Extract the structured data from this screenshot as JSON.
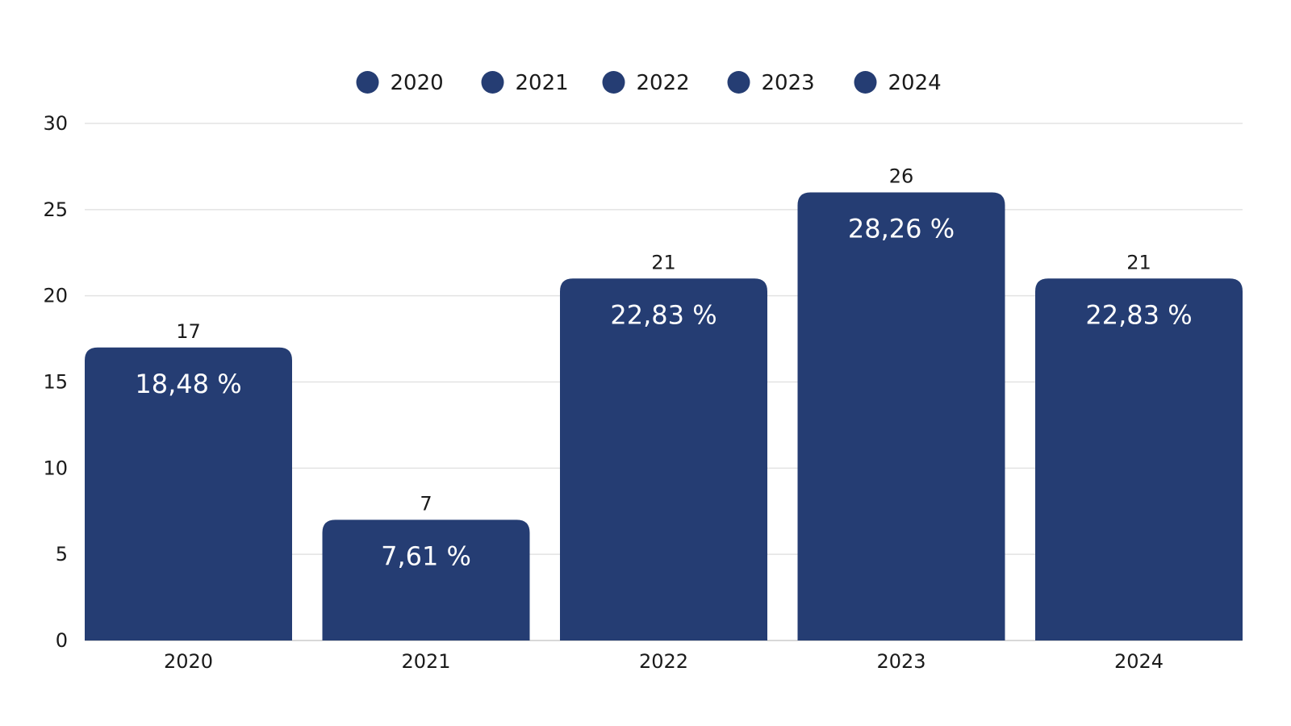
{
  "chart_data": {
    "type": "bar",
    "categories": [
      "2020",
      "2021",
      "2022",
      "2023",
      "2024"
    ],
    "values": [
      17,
      7,
      21,
      26,
      21
    ],
    "percent_labels": [
      "18,48 %",
      "7,61 %",
      "22,83 %",
      "28,26 %",
      "22,83 %"
    ],
    "legend": [
      "2020",
      "2021",
      "2022",
      "2023",
      "2024"
    ],
    "legend_position": "top-center",
    "ylim": [
      0,
      30
    ],
    "yticks": [
      "0",
      "5",
      "10",
      "15",
      "20",
      "25",
      "30"
    ],
    "grid": true,
    "bar_color": "#253d73",
    "title": "",
    "xlabel": "",
    "ylabel": ""
  }
}
